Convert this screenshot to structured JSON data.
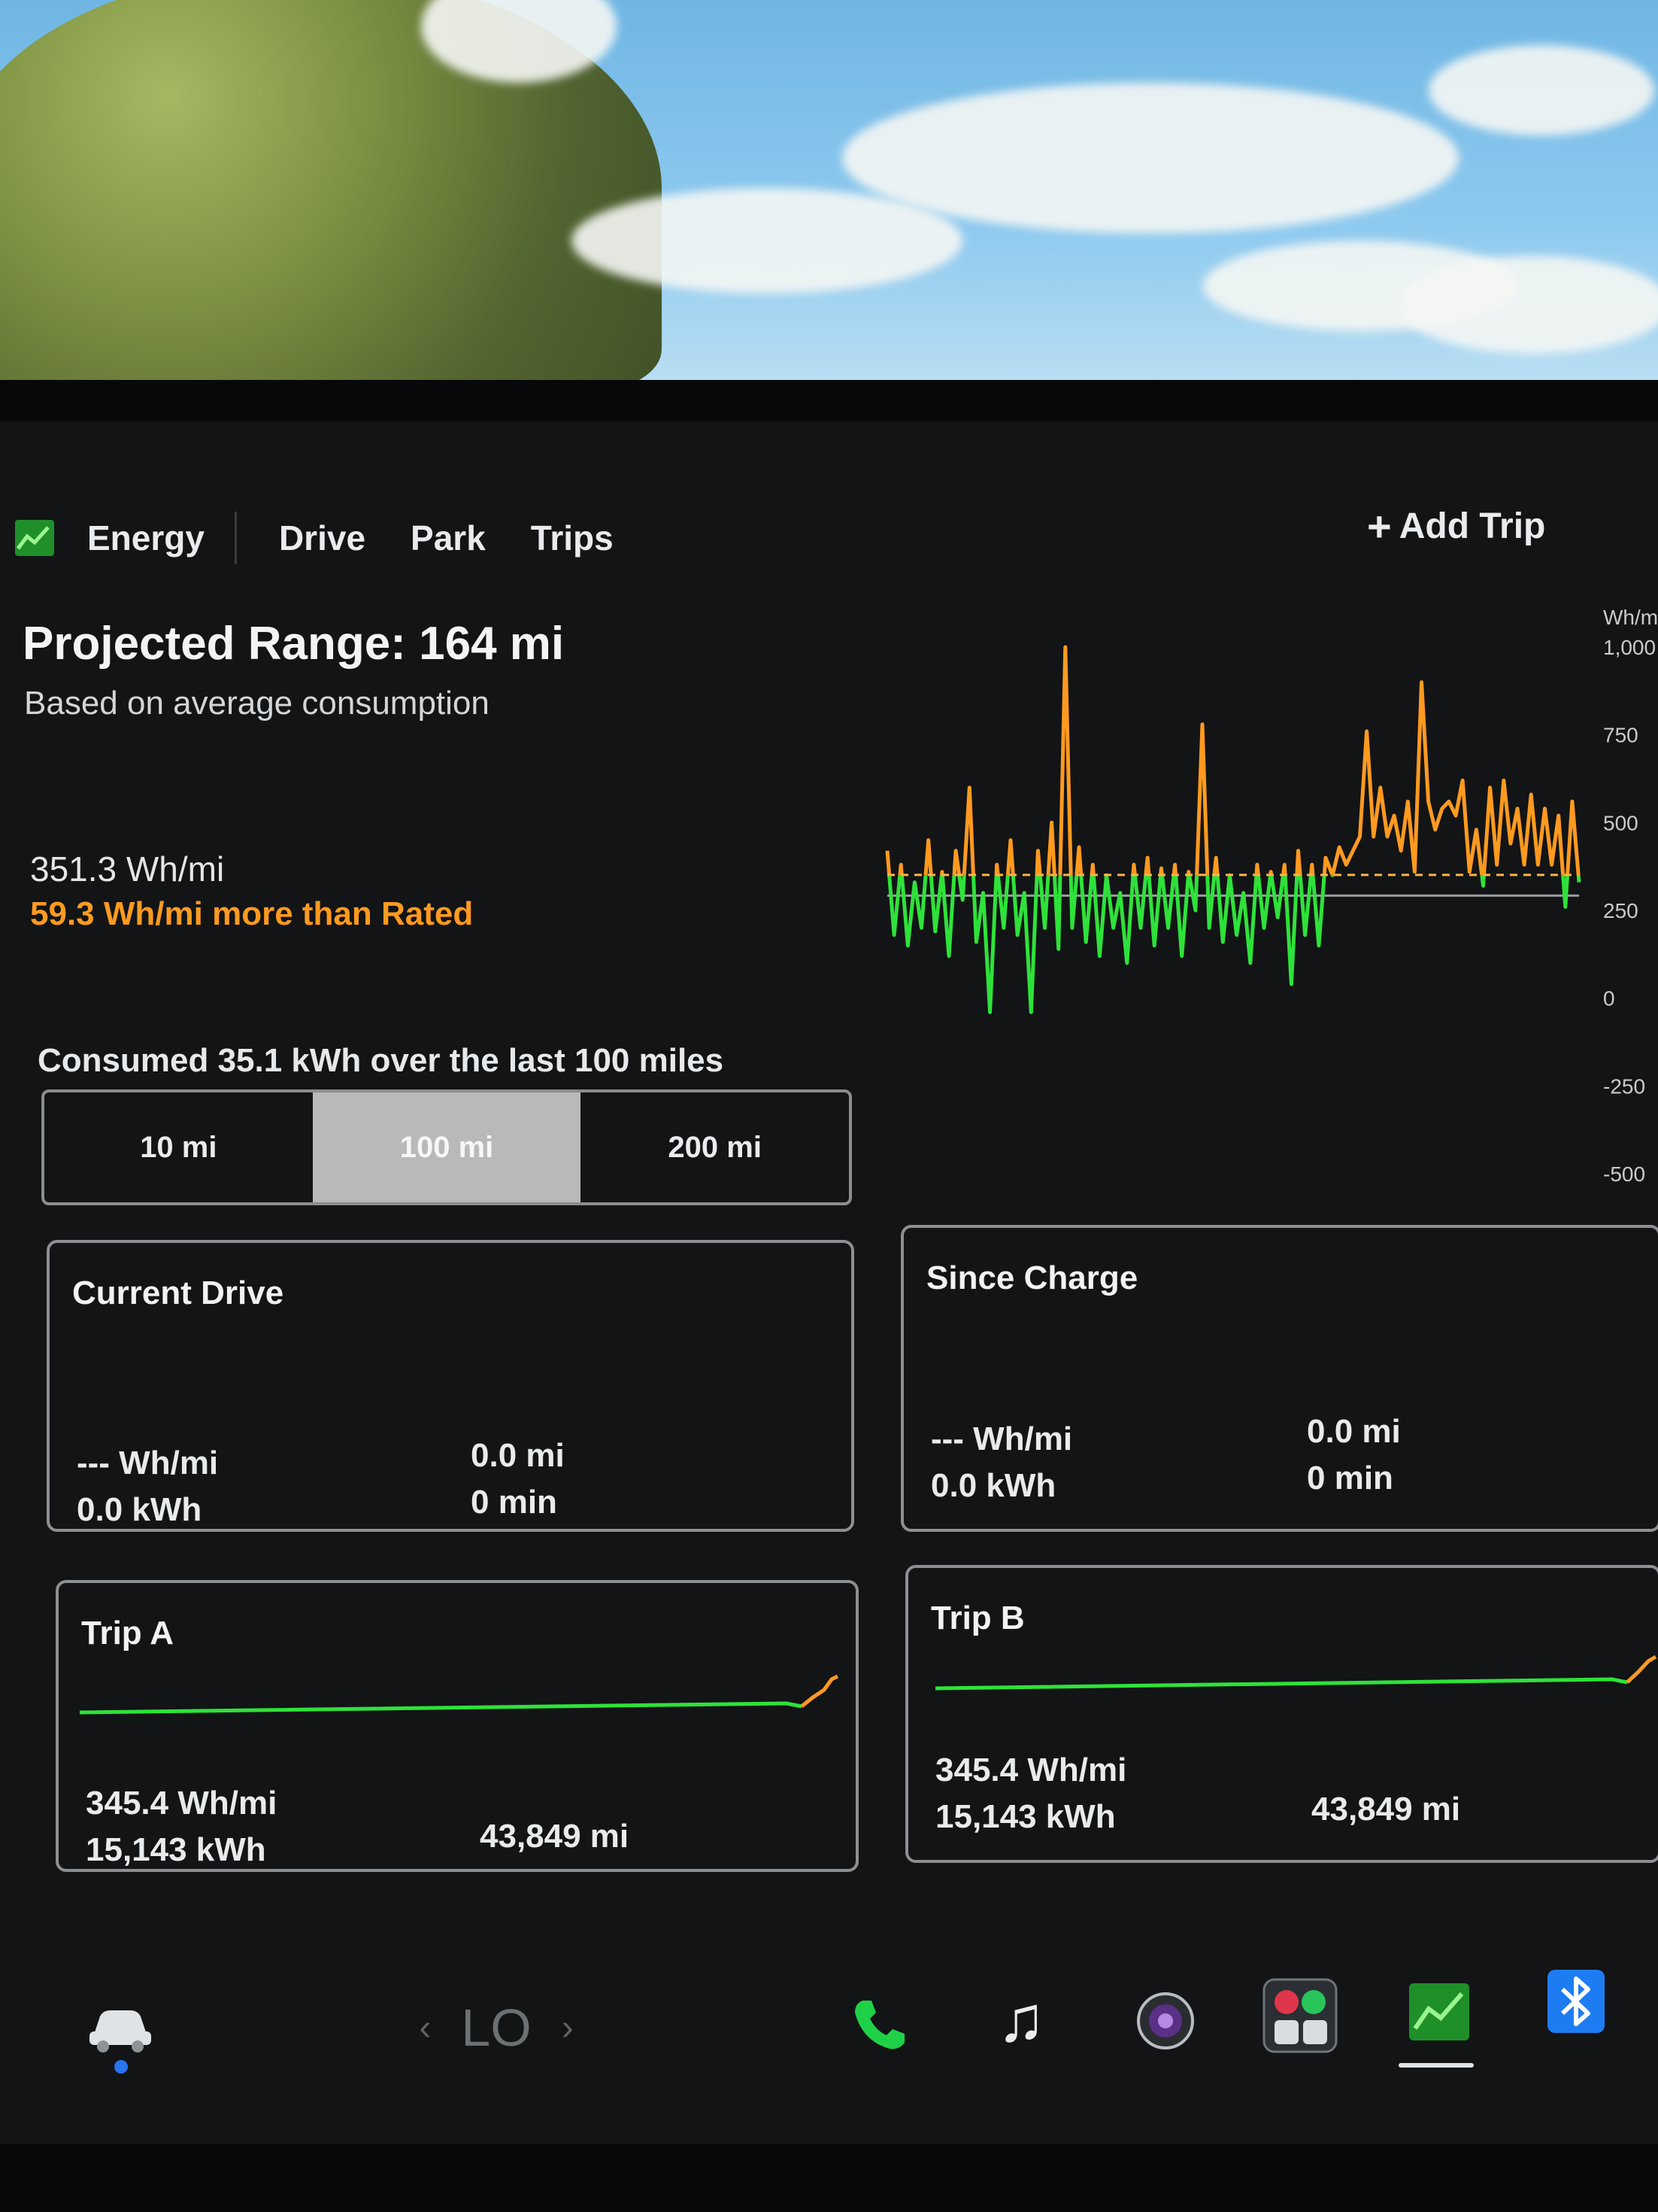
{
  "nav": {
    "tabs": [
      {
        "label": "Energy",
        "active": true
      },
      {
        "label": "Drive"
      },
      {
        "label": "Park"
      },
      {
        "label": "Trips"
      }
    ],
    "add_trip": "Add Trip"
  },
  "summary": {
    "projected_range": "Projected Range: 164 mi",
    "based_on": "Based on average consumption",
    "average": "351.3 Wh/mi",
    "difference": "59.3 Wh/mi more than Rated"
  },
  "consumption": {
    "text": "Consumed 35.1 kWh over the last 100 miles",
    "options": [
      "10 mi",
      "100 mi",
      "200 mi"
    ],
    "selected": "100 mi"
  },
  "cards": {
    "current_drive": {
      "title": "Current Drive",
      "efficiency": "--- Wh/mi",
      "energy": "0.0 kWh",
      "distance": "0.0 mi",
      "time": "0 min"
    },
    "since_charge": {
      "title": "Since Charge",
      "efficiency": "--- Wh/mi",
      "energy": "0.0 kWh",
      "distance": "0.0 mi",
      "time": "0 min"
    },
    "trip_a": {
      "title": "Trip A",
      "efficiency": "345.4 Wh/mi",
      "energy": "15,143 kWh",
      "distance": "43,849 mi"
    },
    "trip_b": {
      "title": "Trip B",
      "efficiency": "345.4 Wh/mi",
      "energy": "15,143 kWh",
      "distance": "43,849 mi"
    }
  },
  "dock": {
    "climate_text": "LO",
    "icons": [
      "car-icon",
      "phone-icon",
      "music-icon",
      "camera-icon",
      "apps-icon",
      "energy-app-icon",
      "bluetooth-icon"
    ]
  },
  "colors": {
    "accent_orange": "#ff9a1f",
    "consumption_green": "#2ee23a",
    "phone_green": "#1fd147",
    "bluetooth_blue": "#1e7cf2"
  },
  "chart_data": {
    "type": "line",
    "ylabel": "Wh/mi",
    "ylim": [
      -500,
      1000
    ],
    "yticks": [
      "1,000",
      "750",
      "500",
      "250",
      "0",
      "-250",
      "-500"
    ],
    "rated_line": 292,
    "average_line": 351,
    "series": [
      {
        "values": [
          420,
          180,
          380,
          150,
          330,
          200,
          450,
          190,
          360,
          120,
          420,
          280,
          600,
          160,
          300,
          -40,
          380,
          200,
          450,
          180,
          300,
          -40,
          420,
          200,
          500,
          140,
          1000,
          200,
          430,
          160,
          380,
          120,
          350,
          200,
          300,
          100,
          380,
          200,
          400,
          150,
          370,
          200,
          380,
          120,
          360,
          250,
          780,
          200,
          400,
          160,
          350,
          180,
          300,
          100,
          380,
          200,
          360,
          230,
          380,
          40,
          420,
          180,
          380,
          150,
          400,
          350,
          430,
          380,
          420,
          460,
          760,
          460,
          600,
          460,
          520,
          420,
          560,
          360,
          900,
          560,
          480,
          540,
          560,
          520,
          620,
          360,
          480,
          320,
          600,
          380,
          620,
          440,
          540,
          380,
          580,
          380,
          540,
          380,
          520,
          260,
          560,
          330
        ]
      }
    ]
  }
}
